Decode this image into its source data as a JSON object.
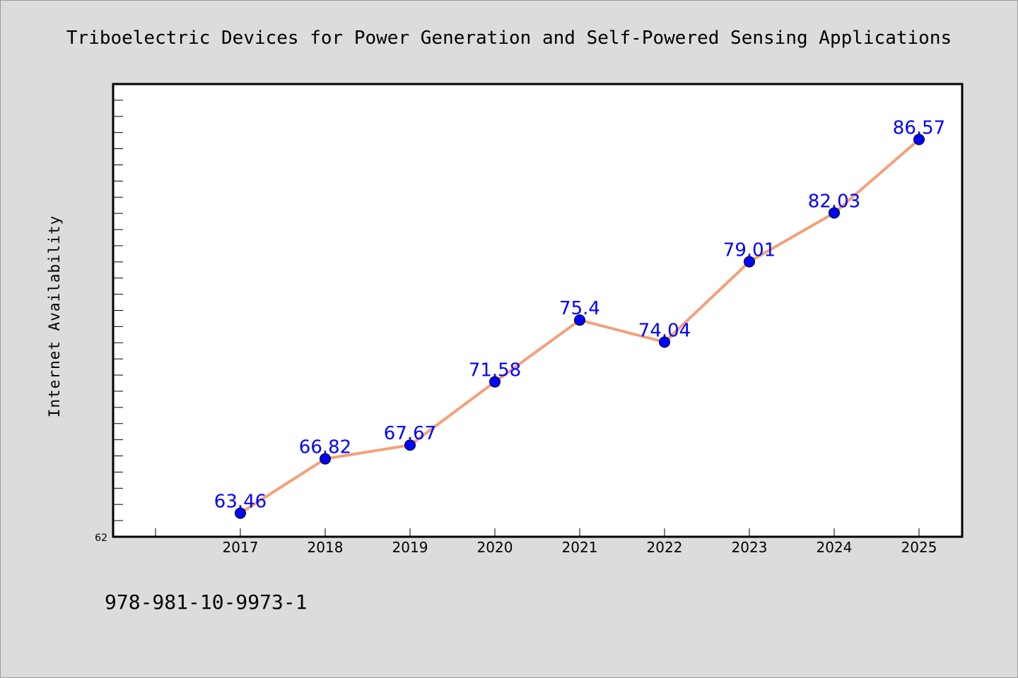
{
  "chart_data": {
    "type": "line",
    "title": "Triboelectric Devices for Power Generation and Self-Powered Sensing Applications",
    "xlabel": "",
    "ylabel": "Internet Availability",
    "categories": [
      "2017",
      "2018",
      "2019",
      "2020",
      "2021",
      "2022",
      "2023",
      "2024",
      "2025"
    ],
    "series": [
      {
        "values": [
          63.46,
          66.82,
          67.67,
          71.58,
          75.4,
          74.04,
          79.01,
          82.03,
          86.57
        ]
      }
    ],
    "data_labels": [
      "63.46",
      "66.82",
      "67.67",
      "71.58",
      "75.4",
      "74.04",
      "79.01",
      "82.03",
      "86.57"
    ],
    "ylim": [
      62,
      90
    ],
    "ytick_labels": [
      "62"
    ],
    "line_color": "#f4a07a",
    "marker_color": "#0000ff",
    "label_color": "#0000ff",
    "grid": false
  },
  "footer": {
    "text": "978-981-10-9973-1"
  }
}
